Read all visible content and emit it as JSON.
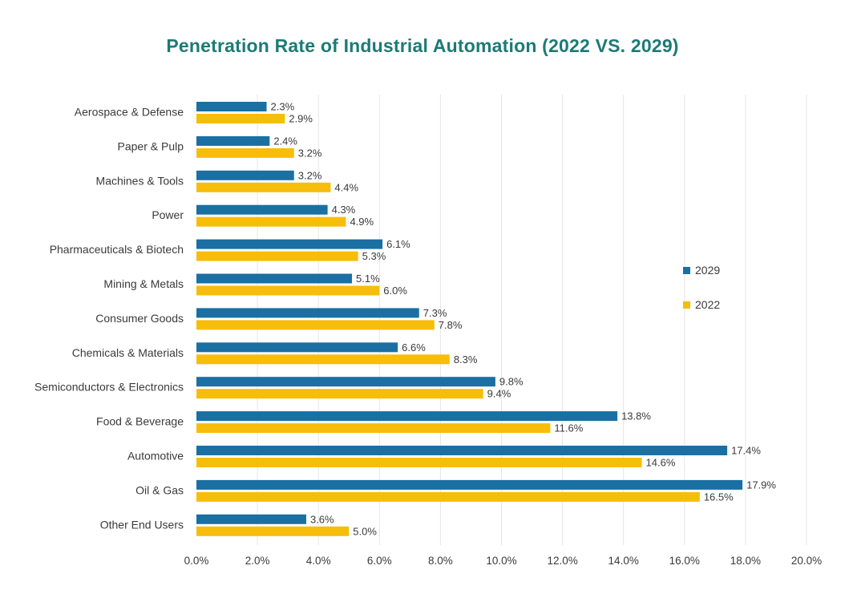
{
  "chart_data": {
    "type": "bar",
    "orientation": "horizontal",
    "title": "Penetration Rate of Industrial Automation (2022 VS. 2029)",
    "xlabel": "",
    "ylabel": "",
    "xlim": [
      0,
      20
    ],
    "x_ticks": [
      "0.0%",
      "2.0%",
      "4.0%",
      "6.0%",
      "8.0%",
      "10.0%",
      "12.0%",
      "14.0%",
      "16.0%",
      "18.0%",
      "20.0%"
    ],
    "grid": "vertical",
    "legend_position": "right",
    "categories": [
      "Aerospace & Defense",
      "Paper & Pulp",
      "Machines & Tools",
      "Power",
      "Pharmaceuticals & Biotech",
      "Mining & Metals",
      "Consumer Goods",
      "Chemicals & Materials",
      "Semiconductors & Electronics",
      "Food & Beverage",
      "Automotive",
      "Oil & Gas",
      "Other End Users"
    ],
    "series": [
      {
        "name": "2029",
        "color": "#1a6fa3",
        "values": [
          2.3,
          2.4,
          3.2,
          4.3,
          6.1,
          5.1,
          7.3,
          6.6,
          9.8,
          13.8,
          17.4,
          17.9,
          3.6
        ],
        "labels": [
          "2.3%",
          "2.4%",
          "3.2%",
          "4.3%",
          "6.1%",
          "5.1%",
          "7.3%",
          "6.6%",
          "9.8%",
          "13.8%",
          "17.4%",
          "17.9%",
          "3.6%"
        ]
      },
      {
        "name": "2022",
        "color": "#f7bd0b",
        "values": [
          2.9,
          3.2,
          4.4,
          4.9,
          5.3,
          6.0,
          7.8,
          8.3,
          9.4,
          11.6,
          14.6,
          16.5,
          5.0
        ],
        "labels": [
          "2.9%",
          "3.2%",
          "4.4%",
          "4.9%",
          "5.3%",
          "6.0%",
          "7.8%",
          "8.3%",
          "9.4%",
          "11.6%",
          "14.6%",
          "16.5%",
          "5.0%"
        ]
      }
    ]
  }
}
